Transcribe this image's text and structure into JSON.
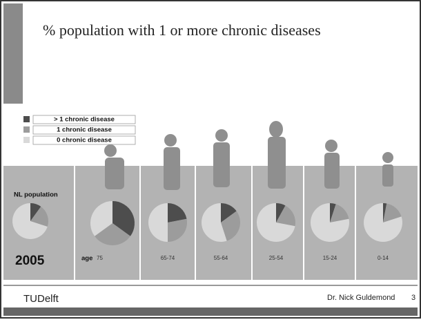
{
  "title": "% population with 1 or more chronic diseases",
  "legend": {
    "labels": [
      "> 1 chronic disease",
      "1 chronic disease",
      "0 chronic disease"
    ],
    "colors": [
      "#4d4d4d",
      "#9c9c9c",
      "#d9d9d9"
    ]
  },
  "year": "2005",
  "age_label": "age",
  "chart_data": [
    {
      "type": "pie",
      "label": "NL population",
      "values": [
        10,
        20,
        70
      ]
    },
    {
      "type": "pie",
      "label": "75",
      "values": [
        35,
        30,
        35
      ]
    },
    {
      "type": "pie",
      "label": "65-74",
      "values": [
        22,
        28,
        50
      ]
    },
    {
      "type": "pie",
      "label": "55-64",
      "values": [
        15,
        30,
        55
      ]
    },
    {
      "type": "pie",
      "label": "25-54",
      "values": [
        8,
        20,
        72
      ]
    },
    {
      "type": "pie",
      "label": "15-24",
      "values": [
        5,
        17,
        78
      ]
    },
    {
      "type": "pie",
      "label": "0-14",
      "values": [
        3,
        17,
        80
      ]
    }
  ],
  "footer": {
    "logo": "TUDelft",
    "author": "Dr. Nick Guldemond",
    "page": "3"
  }
}
